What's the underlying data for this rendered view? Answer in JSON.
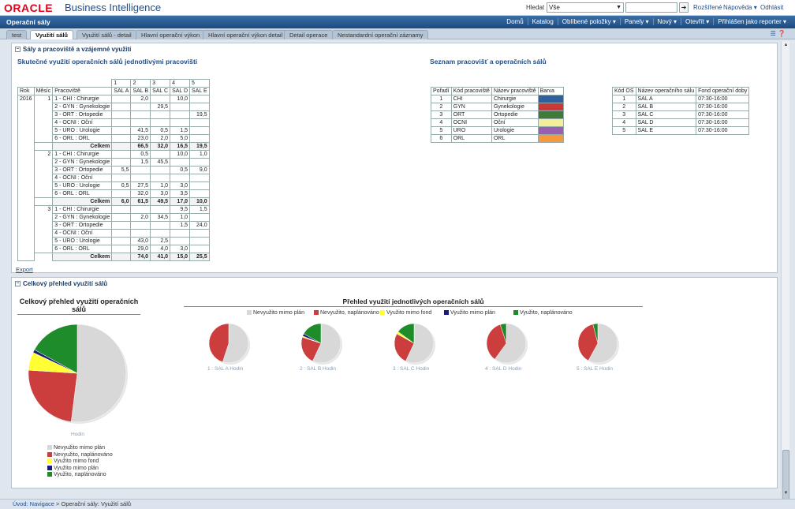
{
  "header": {
    "logo": "ORACLE",
    "product": "Business Intelligence",
    "search_label": "Hledat",
    "search_scope": "Vše",
    "links": [
      "Rozšířené",
      "Nápověda ▾",
      "Odhlásit"
    ]
  },
  "nav": {
    "title": "Operační sály",
    "items": [
      "Domů",
      "Katalog",
      "Oblíbené položky ▾",
      "Panely ▾",
      "Nový ▾",
      "Otevřít ▾",
      "Přihlášen jako  reporter ▾"
    ]
  },
  "tabs": [
    {
      "label": "test",
      "active": false
    },
    {
      "label": "Využití sálů",
      "active": true
    },
    {
      "label": "Využití sálů - detail",
      "active": false
    },
    {
      "label": "Hlavní operační výkon",
      "active": false
    },
    {
      "label": "Hlavní operační výkon detail",
      "active": false
    },
    {
      "label": "Detail operace",
      "active": false
    },
    {
      "label": "Nestandardní operační záznamy",
      "active": false
    }
  ],
  "section1": {
    "title": "Sály a pracoviště a vzájemné využití",
    "left_title": "Skutečné využití operačních sálů jednotlivými pracovišti",
    "right_title": "Seznam pracovišť a operačních sálů",
    "export": "Export"
  },
  "pivot": {
    "col_nums": [
      "1",
      "2",
      "3",
      "4",
      "5"
    ],
    "headers": [
      "Rok",
      "Měsíc",
      "Pracoviště",
      "SAL A",
      "SAL B",
      "SAL C",
      "SAL D",
      "SAL E"
    ],
    "total_label": "Celkem",
    "year": "2016",
    "months": [
      {
        "month": "1",
        "rows": [
          [
            "1 - CHI : Chirurgie",
            "",
            "2,0",
            "",
            "10,0",
            ""
          ],
          [
            "2 - GYN : Gynekologie",
            "",
            "",
            "29,5",
            "",
            ""
          ],
          [
            "3 - ORT : Ortopedie",
            "",
            "",
            "",
            "",
            "19,5"
          ],
          [
            "4 - OCNI : Oční",
            "",
            "",
            "",
            "",
            ""
          ],
          [
            "5 - URO : Urologie",
            "",
            "41,5",
            "0,5",
            "1,5",
            ""
          ],
          [
            "6 - ORL : ORL",
            "",
            "23,0",
            "2,0",
            "5,0",
            ""
          ]
        ],
        "total": [
          "",
          "66,5",
          "32,0",
          "16,5",
          "19,5"
        ]
      },
      {
        "month": "2",
        "rows": [
          [
            "1 - CHI : Chirurgie",
            "",
            "0,5",
            "",
            "10,0",
            "1,0"
          ],
          [
            "2 - GYN : Gynekologie",
            "",
            "1,5",
            "45,5",
            "",
            ""
          ],
          [
            "3 - ORT : Ortopedie",
            "5,5",
            "",
            "",
            "0,5",
            "9,0"
          ],
          [
            "4 - OCNI : Oční",
            "",
            "",
            "",
            "",
            ""
          ],
          [
            "5 - URO : Urologie",
            "0,5",
            "27,5",
            "1,0",
            "3,0",
            ""
          ],
          [
            "6 - ORL : ORL",
            "",
            "32,0",
            "3,0",
            "3,5",
            ""
          ]
        ],
        "total": [
          "6,0",
          "61,5",
          "49,5",
          "17,0",
          "10,0"
        ]
      },
      {
        "month": "3",
        "rows": [
          [
            "1 - CHI : Chirurgie",
            "",
            "",
            "",
            "9,5",
            "1,5"
          ],
          [
            "2 - GYN : Gynekologie",
            "",
            "2,0",
            "34,5",
            "1,0",
            ""
          ],
          [
            "3 - ORT : Ortopedie",
            "",
            "",
            "",
            "1,5",
            "24,0"
          ],
          [
            "4 - OCNI : Oční",
            "",
            "",
            "",
            "",
            ""
          ],
          [
            "5 - URO : Urologie",
            "",
            "43,0",
            "2,5",
            "",
            ""
          ],
          [
            "6 - ORL : ORL",
            "",
            "29,0",
            "4,0",
            "3,0",
            ""
          ]
        ],
        "total": [
          "",
          "74,0",
          "41,0",
          "15,0",
          "25,5"
        ]
      }
    ]
  },
  "dept_table": {
    "headers": [
      "Pořadí",
      "Kód pracoviště",
      "Název pracoviště",
      "Barva"
    ],
    "rows": [
      {
        "order": "1",
        "code": "CHI",
        "name": "Chirurgie",
        "color": "#2e5f9e"
      },
      {
        "order": "2",
        "code": "GYN",
        "name": "Gynekologie",
        "color": "#c83a3a"
      },
      {
        "order": "3",
        "code": "ORT",
        "name": "Ortopedie",
        "color": "#3e7a3a"
      },
      {
        "order": "4",
        "code": "OCNI",
        "name": "Oční",
        "color": "#f3ee9a"
      },
      {
        "order": "5",
        "code": "URO",
        "name": "Urologie",
        "color": "#9a5fb0"
      },
      {
        "order": "6",
        "code": "ORL",
        "name": "ORL",
        "color": "#f59a3c"
      }
    ]
  },
  "sal_table": {
    "headers": [
      "Kód OS",
      "Název operačního sálu",
      "Fond operační doby"
    ],
    "rows": [
      [
        "1",
        "SAL A",
        "07:30-16:00"
      ],
      [
        "2",
        "SAL B",
        "07:30-16:00"
      ],
      [
        "3",
        "SAL C",
        "07:30-16:00"
      ],
      [
        "4",
        "SAL D",
        "07:30-16:00"
      ],
      [
        "5",
        "SAL E",
        "07:30-16:00"
      ]
    ]
  },
  "section2": {
    "title": "Celkový přehled využití sálů"
  },
  "chart_data": [
    {
      "type": "pie",
      "title": "Celkový přehled využití operačních sálů",
      "caption": "Hodin",
      "categories": [
        "Nevyužito mimo plán",
        "Nevyužito, naplánováno",
        "Využito mimo fond",
        "Využito mimo plán",
        "Využito, naplánováno"
      ],
      "values": [
        52,
        24,
        6,
        1,
        17
      ],
      "colors": [
        "#d8d8d8",
        "#cc3d3d",
        "#ffff33",
        "#1a1a80",
        "#1e8c2a"
      ],
      "legend": "bottom"
    },
    {
      "type": "pie",
      "title": "Přehled využití jednotlivých operačních sálů",
      "legend": "top",
      "categories": [
        "Nevyužito mimo plán",
        "Nevyužito, naplánováno",
        "Využito mimo fond",
        "Využito mimo plán",
        "Využito, naplánováno"
      ],
      "colors": [
        "#d8d8d8",
        "#cc3d3d",
        "#ffff33",
        "#1a1a80",
        "#1e8c2a"
      ],
      "series": [
        {
          "name": "1 : SAL A Hodin",
          "values": [
            55,
            45,
            0,
            0,
            0
          ]
        },
        {
          "name": "2 : SAL B Hodin",
          "values": [
            57,
            23,
            1,
            2,
            17
          ]
        },
        {
          "name": "3 : SAL C Hodin",
          "values": [
            57,
            26,
            2,
            0,
            15
          ]
        },
        {
          "name": "4 : SAL D Hodin",
          "values": [
            60,
            35,
            0,
            0,
            5
          ]
        },
        {
          "name": "5 : SAL E Hodin",
          "values": [
            58,
            38,
            0,
            0,
            4
          ]
        }
      ]
    }
  ],
  "footer": {
    "crumb_home": "Úvod: Navigace",
    "crumb_sep": ">",
    "crumb_current": "Operační sály: Využití sálů"
  }
}
